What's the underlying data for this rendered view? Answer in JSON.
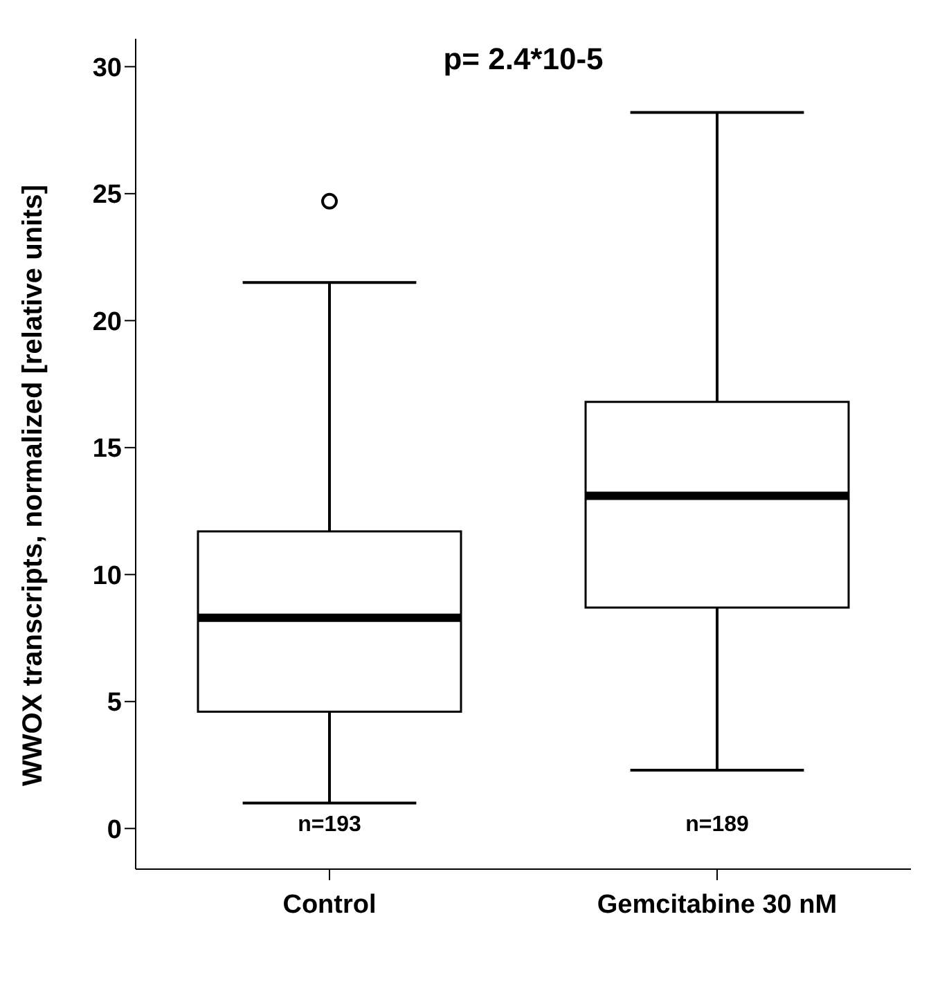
{
  "chart_data": {
    "type": "box",
    "ylabel": "WWOX transcripts, normalized [relative units]",
    "categories": [
      "Control",
      "Gemcitabine 30 nM"
    ],
    "boxes": [
      {
        "low": 1.0,
        "q1": 4.6,
        "median": 8.3,
        "q3": 11.7,
        "high": 21.5,
        "outliers": [
          24.7
        ]
      },
      {
        "low": 2.3,
        "q1": 8.7,
        "median": 13.1,
        "q3": 16.8,
        "high": 28.2
      }
    ],
    "ylim": [
      -1.6,
      31.1
    ],
    "yticks": [
      0,
      5,
      10,
      15,
      20,
      25,
      30
    ],
    "grid": false,
    "annotations": [
      "p= 2.4*10-5",
      "n=193",
      "n=189"
    ]
  }
}
